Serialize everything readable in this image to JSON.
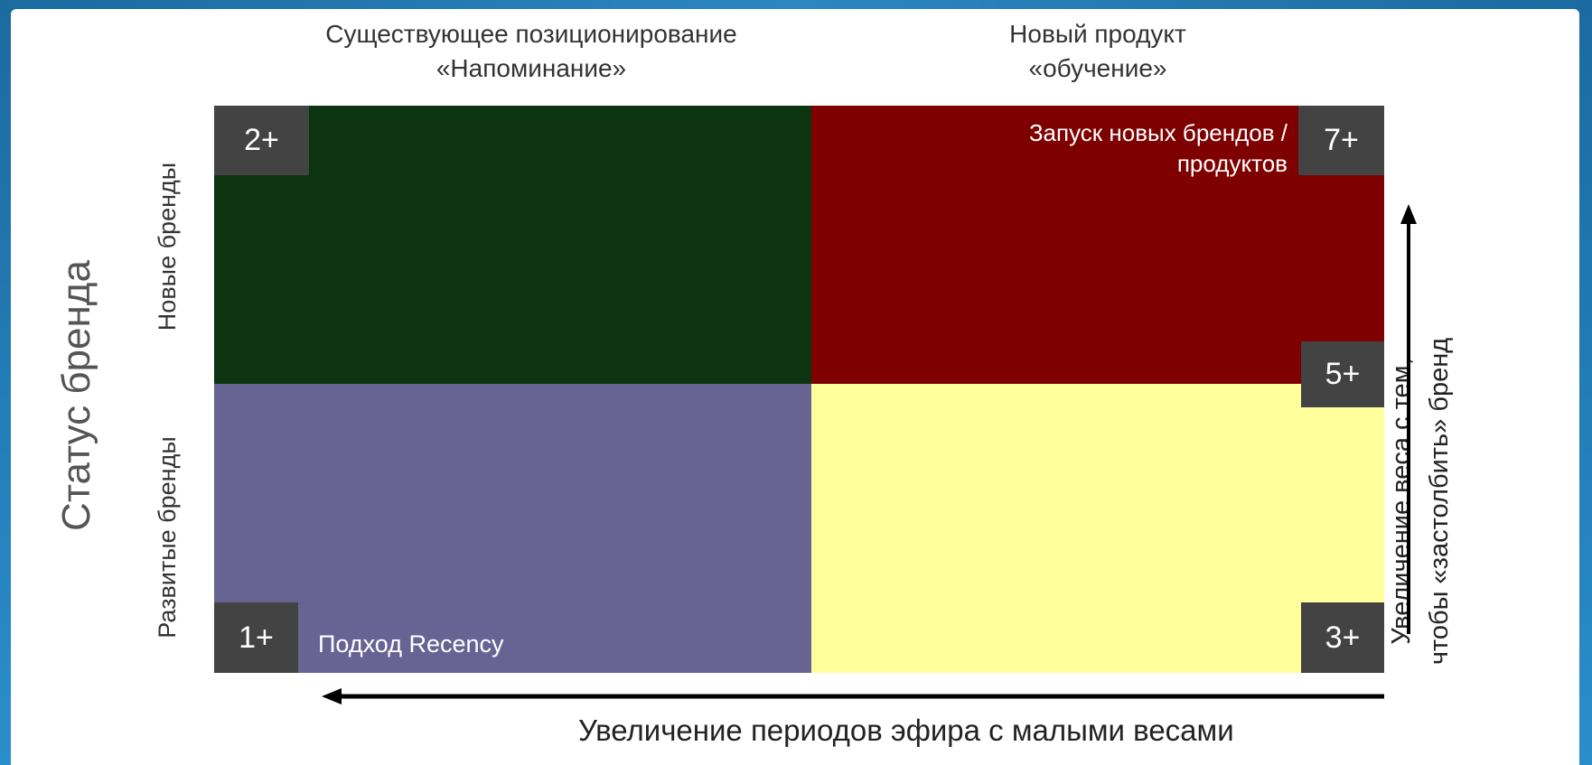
{
  "headers": {
    "left_line1": "Существующее позиционирование",
    "left_line2": "«Напоминание»",
    "right_line1": "Новый продукт",
    "right_line2": "«обучение»"
  },
  "axis": {
    "status_title": "Статус бренда",
    "row_new": "Новые бренды",
    "row_developed": "Развитые бренды",
    "vertical_line1": "Увеличение веса с тем,",
    "vertical_line2": "чтобы «застолбить» бренд",
    "horizontal": "Увеличение периодов эфира с малыми весами"
  },
  "quadrants": {
    "top_left_color": "#0c3410",
    "top_right_color": "#7e0000",
    "bottom_left_color": "#676494",
    "bottom_right_color": "#ffff9c"
  },
  "badges": {
    "top_left": "2+",
    "top_right": "7+",
    "mid_right": "5+",
    "bottom_left": "1+",
    "bottom_right": "3+"
  },
  "notes": {
    "launch_line1": "Запуск новых брендов /",
    "launch_line2": "продуктов",
    "recency": "Подход Recency"
  }
}
